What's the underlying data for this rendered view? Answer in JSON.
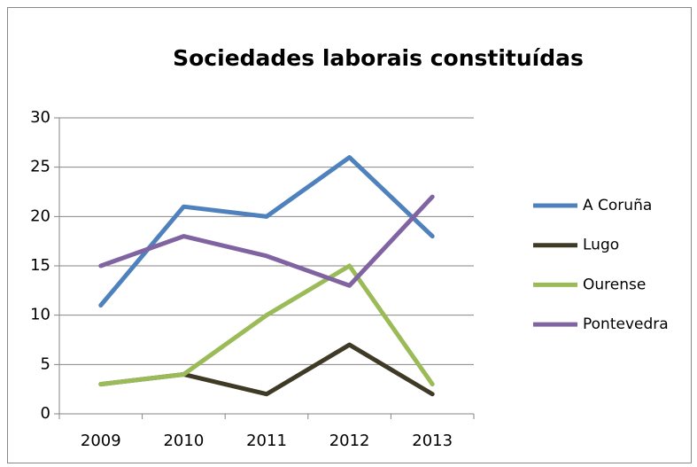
{
  "chart_data": {
    "type": "line",
    "title": "Sociedades laborais constituídas",
    "categories": [
      "2009",
      "2010",
      "2011",
      "2012",
      "2013"
    ],
    "series": [
      {
        "name": "A Coruña",
        "color": "#4f81bd",
        "values": [
          11,
          21,
          20,
          26,
          18
        ]
      },
      {
        "name": "Lugo",
        "color": "#3f3a26",
        "values": [
          3,
          4,
          2,
          7,
          2
        ]
      },
      {
        "name": "Ourense",
        "color": "#9bbb59",
        "values": [
          3,
          4,
          10,
          15,
          3
        ]
      },
      {
        "name": "Pontevedra",
        "color": "#8064a2",
        "values": [
          15,
          18,
          16,
          13,
          22
        ]
      }
    ],
    "ylim": [
      0,
      30
    ],
    "yticks": [
      0,
      5,
      10,
      15,
      20,
      25,
      30
    ],
    "grid": true,
    "legend": "right"
  }
}
